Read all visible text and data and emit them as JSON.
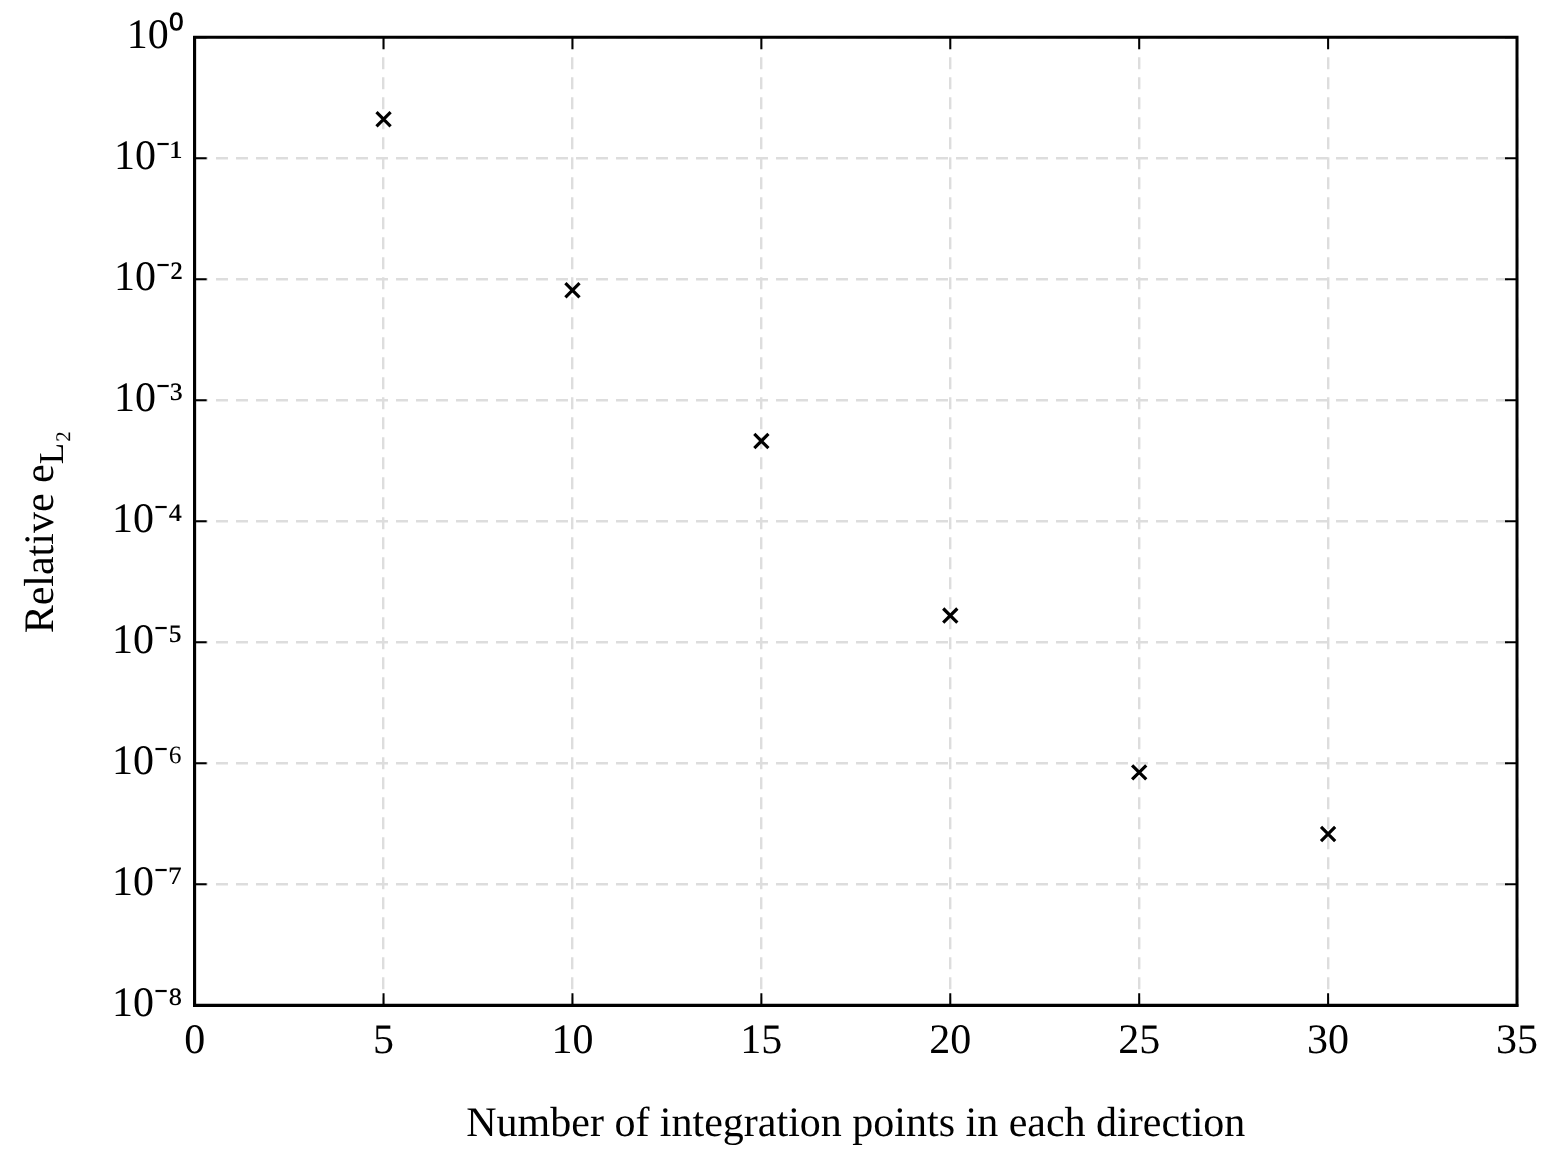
{
  "chart_data": {
    "type": "scatter",
    "xlabel": "Number of integration points in each direction",
    "ylabel": "Relative e$_{L₂}$",
    "x": [
      5,
      10,
      15,
      20,
      25,
      30
    ],
    "series": [
      {
        "color": "#000000",
        "values": [
          0.21,
          0.0081,
          0.00046,
          1.66e-05,
          8.4e-07,
          2.6e-07
        ]
      }
    ],
    "xlim": [
      0,
      35
    ],
    "xticks": [
      0,
      5,
      10,
      15,
      20,
      25,
      30,
      35
    ],
    "ylim": [
      1e-08,
      1
    ],
    "yticks": [
      {
        "value": 1e-08,
        "label": "10⁻⁸"
      },
      {
        "value": 1e-07,
        "label": "10⁻⁷"
      },
      {
        "value": 1e-06,
        "label": "10⁻⁶"
      },
      {
        "value": 1e-05,
        "label": "10⁻⁵"
      },
      {
        "value": 0.0001,
        "label": "10⁻⁴"
      },
      {
        "value": 0.001,
        "label": "10⁻³"
      },
      {
        "value": 0.01,
        "label": "10⁻²"
      },
      {
        "value": 0.1,
        "label": "10⁻¹"
      },
      {
        "value": 1,
        "label": "10⁰"
      }
    ],
    "log": "y",
    "grid": true,
    "legend": false,
    "marker": "cross"
  }
}
